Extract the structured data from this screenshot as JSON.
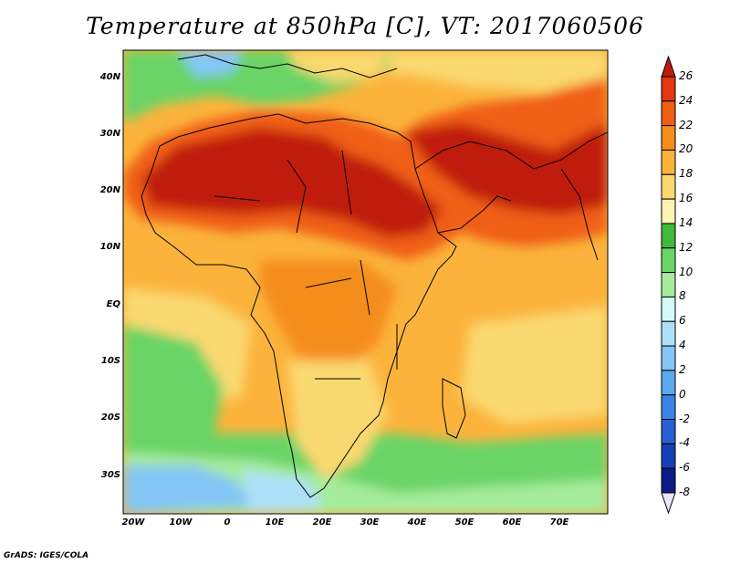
{
  "title": "Temperature at 850hPa [C], VT: 2017060506",
  "footer": "GrADS: IGES/COLA",
  "map": {
    "lat_labels": [
      "40N",
      "30N",
      "20N",
      "10N",
      "EQ",
      "10S",
      "20S",
      "30S"
    ],
    "lon_labels": [
      "20W",
      "10W",
      "0",
      "10E",
      "20E",
      "30E",
      "40E",
      "50E",
      "60E",
      "70E"
    ],
    "lon_range": [
      -22,
      80
    ],
    "lat_range": [
      -37,
      45
    ]
  },
  "colorbar": {
    "labels": [
      "26",
      "24",
      "22",
      "20",
      "18",
      "16",
      "14",
      "12",
      "10",
      "8",
      "6",
      "4",
      "2",
      "0",
      "-2",
      "-4",
      "-6",
      "-8"
    ],
    "colors": [
      "#c01a10",
      "#e2380e",
      "#f05f12",
      "#f58d1a",
      "#fbb33c",
      "#fad870",
      "#fcf3b0",
      "#3fba3a",
      "#6bd466",
      "#a6eb9c",
      "#d4fbf6",
      "#aee0fa",
      "#84c6f5",
      "#5ba8ef",
      "#3b82e6",
      "#2660d4",
      "#1740b6",
      "#0b1e85",
      "#e8e4fa"
    ]
  }
}
